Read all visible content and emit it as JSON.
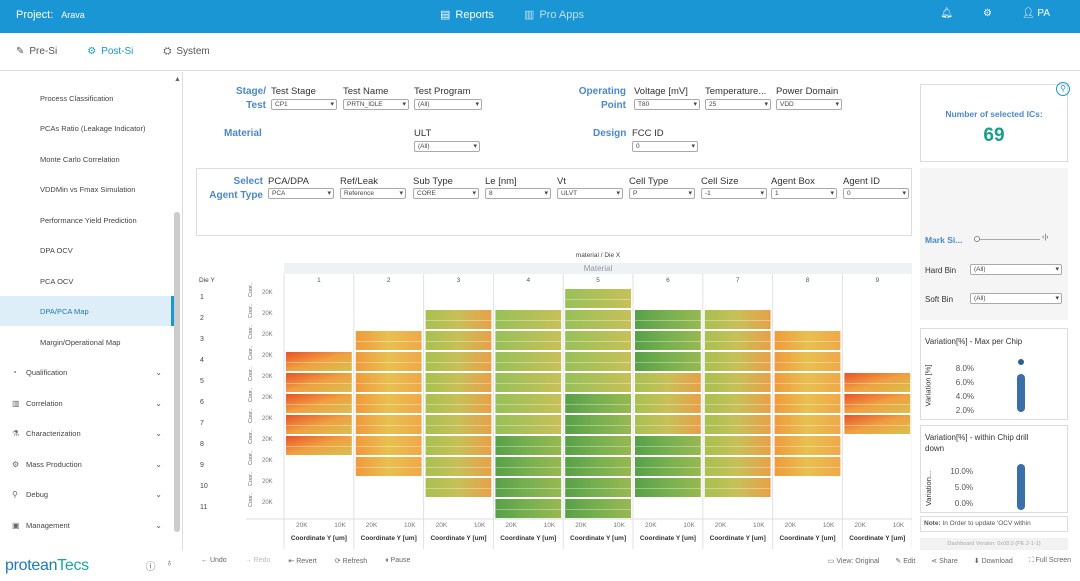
{
  "topbar": {
    "project_label": "Project:",
    "project_name": "Arava",
    "reports": "Reports",
    "pro_apps": "Pro Apps",
    "user": "PA"
  },
  "subnav": {
    "pre_si": "Pre-Si",
    "post_si": "Post-Si",
    "system": "System"
  },
  "sidebar": {
    "items": [
      "Process Classification",
      "PCAs Ratio (Leakage Indicator)",
      "Monte Carlo Correlation",
      "VDDMin vs Fmax Simulation",
      "Performance Yield Prediction",
      "DPA OCV",
      "PCA OCV",
      "DPA/PCA Map",
      "Margin/Operational Map"
    ],
    "sections": [
      "Qualification",
      "Correlation",
      "Characterization",
      "Mass Production",
      "Debug",
      "Management"
    ]
  },
  "logo": {
    "part1": "protean",
    "part2": "Tecs"
  },
  "filters": {
    "stage_test_1": "Stage/",
    "stage_test_2": "Test",
    "test_stage": {
      "label": "Test Stage",
      "value": "CP1"
    },
    "test_name": {
      "label": "Test Name",
      "value": "PRTN_IDLE"
    },
    "test_program": {
      "label": "Test Program",
      "value": "(All)"
    },
    "operating_point_1": "Operating",
    "operating_point_2": "Point",
    "voltage": {
      "label": "Voltage [mV]",
      "value": "T80"
    },
    "temperature": {
      "label": "Temperature...",
      "value": "25"
    },
    "power_domain": {
      "label": "Power Domain",
      "value": "VDD"
    },
    "material": "Material",
    "ult": {
      "label": "ULT",
      "value": "(All)"
    },
    "design": "Design",
    "fcc_id": {
      "label": "FCC ID",
      "value": "0"
    }
  },
  "agent": {
    "select_1": "Select",
    "select_2": "Agent Type",
    "fields": [
      {
        "label": "PCA/DPA",
        "value": "PCA"
      },
      {
        "label": "Ref/Leak",
        "value": "Reference"
      },
      {
        "label": "Sub Type",
        "value": "CORE"
      },
      {
        "label": "Le [nm]",
        "value": "8"
      },
      {
        "label": "Vt",
        "value": "ULVT"
      },
      {
        "label": "Cell Type",
        "value": "P"
      },
      {
        "label": "Cell Size",
        "value": "-1"
      },
      {
        "label": "Agent Box",
        "value": "1"
      },
      {
        "label": "Agent ID",
        "value": "0"
      }
    ]
  },
  "selected": {
    "label": "Number of selected ICs:",
    "value": "69"
  },
  "right": {
    "mark_size": "Mark Si...",
    "hard_bin": {
      "label": "Hard Bin",
      "value": "(All)"
    },
    "soft_bin": {
      "label": "Soft Bin",
      "value": "(All)"
    },
    "chart1_title": "Variation[%] - Max per Chip",
    "chart1_ylabel": "Variation [%]",
    "chart1_ticks": [
      "8.0%",
      "6.0%",
      "4.0%",
      "2.0%"
    ],
    "chart2_title_1": "Variation[%] - within Chip drill",
    "chart2_title_2": "down",
    "chart2_ylabel": "Variation...",
    "chart2_ticks": [
      "10.0%",
      "5.0%",
      "0.0%"
    ],
    "note_bold": "Note:",
    "note": " In Order to update 'OCV within",
    "version": "Dashboard Version: 0x08.0 (PE 2-1-1)"
  },
  "heatmap": {
    "header1": "material / Die X",
    "header2": "Material",
    "die_y": "Die Y",
    "cols": [
      "1",
      "2",
      "3",
      "4",
      "5",
      "6",
      "7",
      "8",
      "9"
    ],
    "rows": [
      "1",
      "2",
      "3",
      "4",
      "5",
      "6",
      "7",
      "8",
      "9",
      "10",
      "11"
    ],
    "y_tick": "20K",
    "y_axis_label": "Coor..",
    "x_ticks": [
      "20K",
      "10K"
    ],
    "x_label": "Coordinate Y [um]"
  },
  "chart_data": {
    "type": "heatmap",
    "title": "material / Die X",
    "x_categories": [
      "1",
      "2",
      "3",
      "4",
      "5",
      "6",
      "7",
      "8",
      "9"
    ],
    "y_categories": [
      "1",
      "2",
      "3",
      "4",
      "5",
      "6",
      "7",
      "8",
      "9",
      "10",
      "11"
    ],
    "present_dies": {
      "1": [
        5
      ],
      "2": [
        3,
        4,
        5,
        6,
        7
      ],
      "3": [
        2,
        3,
        4,
        5,
        6,
        7,
        8
      ],
      "4": [
        1,
        2,
        3,
        4,
        5,
        6,
        7,
        8
      ],
      "5": [
        1,
        2,
        3,
        4,
        5,
        6,
        7,
        8,
        9
      ],
      "6": [
        1,
        2,
        3,
        4,
        5,
        6,
        7,
        8,
        9
      ],
      "7": [
        1,
        2,
        3,
        4,
        5,
        6,
        7,
        8,
        9
      ],
      "8": [
        1,
        2,
        3,
        4,
        5,
        6,
        7,
        8
      ],
      "9": [
        2,
        3,
        4,
        5,
        6,
        7,
        8
      ],
      "10": [
        3,
        4,
        5,
        6,
        7
      ],
      "11": [
        4,
        5
      ]
    }
  },
  "bottom": {
    "undo": "Undo",
    "redo": "Redo",
    "revert": "Revert",
    "refresh": "Refresh",
    "pause": "Pause",
    "view": "View: Original",
    "edit": "Edit",
    "share": "Share",
    "download": "Download",
    "full": "Full Screen"
  }
}
